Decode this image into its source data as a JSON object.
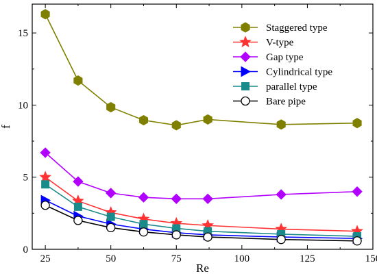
{
  "chart_data": {
    "type": "line",
    "xlabel": "Re",
    "ylabel": "f",
    "xlim": [
      20,
      150
    ],
    "ylim": [
      0,
      17
    ],
    "xticks": [
      25,
      50,
      75,
      100,
      125,
      150
    ],
    "yticks": [
      0,
      5,
      10,
      15
    ],
    "x": [
      25,
      37.5,
      50,
      62.5,
      75,
      87,
      115,
      144
    ],
    "legend_position": "top-right",
    "grid": false,
    "series": [
      {
        "name": "Staggered type",
        "color": "#808000",
        "marker": "hexagon",
        "values": [
          16.3,
          11.7,
          9.85,
          8.95,
          8.6,
          9.0,
          8.65,
          8.75
        ]
      },
      {
        "name": "V-type",
        "color": "#ff3333",
        "marker": "star",
        "values": [
          5.0,
          3.35,
          2.55,
          2.1,
          1.8,
          1.65,
          1.4,
          1.25
        ]
      },
      {
        "name": "Gap type",
        "color": "#b200ff",
        "marker": "diamond",
        "values": [
          6.7,
          4.7,
          3.9,
          3.6,
          3.5,
          3.5,
          3.8,
          4.0
        ]
      },
      {
        "name": "Cylindrical type",
        "color": "#0000ff",
        "marker": "triangle-right",
        "values": [
          3.4,
          2.3,
          1.75,
          1.4,
          1.15,
          1.0,
          0.85,
          0.75
        ]
      },
      {
        "name": "parallel type",
        "color": "#1a8a8a",
        "marker": "square",
        "values": [
          4.5,
          2.95,
          2.25,
          1.75,
          1.45,
          1.25,
          1.05,
          0.9
        ]
      },
      {
        "name": "Bare pipe",
        "color": "#000000",
        "marker": "circle-open",
        "values": [
          3.05,
          2.0,
          1.5,
          1.2,
          1.0,
          0.85,
          0.68,
          0.58
        ]
      }
    ]
  }
}
